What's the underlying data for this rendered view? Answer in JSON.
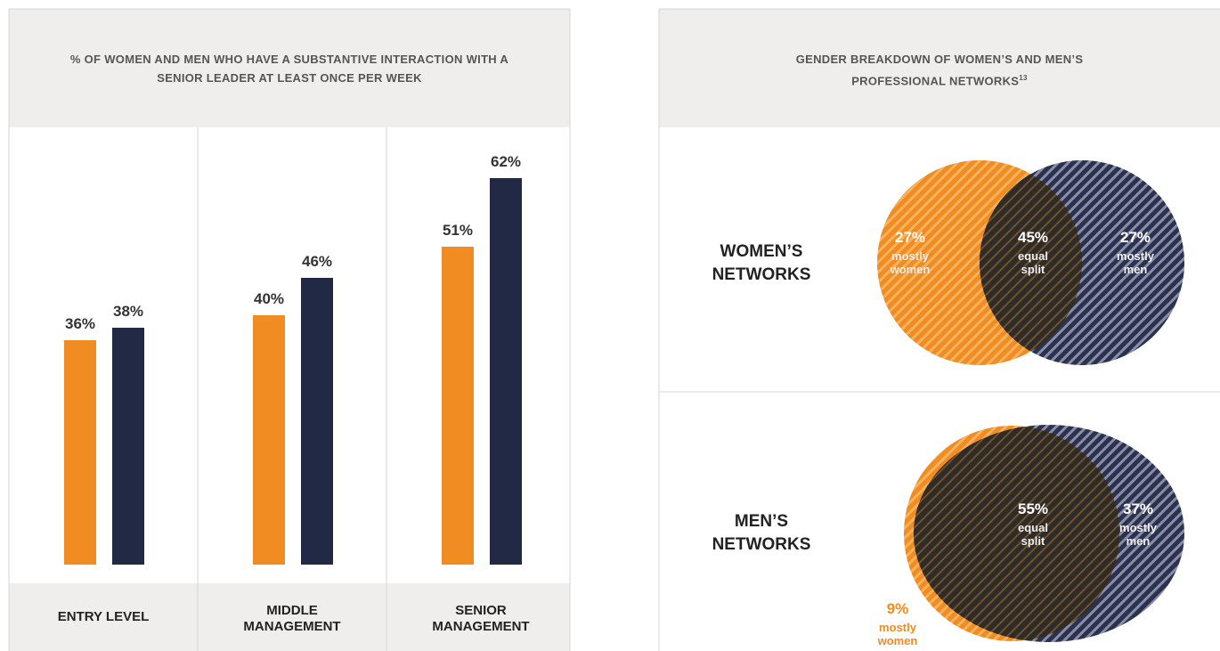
{
  "chart_data": [
    {
      "type": "bar",
      "title": "% OF WOMEN AND MEN WHO HAVE A SUBSTANTIVE INTERACTION WITH A SENIOR LEADER AT LEAST ONCE PER WEEK",
      "categories": [
        "ENTRY LEVEL",
        "MIDDLE MANAGEMENT",
        "SENIOR MANAGEMENT"
      ],
      "series": [
        {
          "color": "#f08c22",
          "values": [
            36,
            40,
            51
          ],
          "value_labels": [
            "36%",
            "40%",
            "51%"
          ]
        },
        {
          "color": "#222944",
          "values": [
            38,
            46,
            62
          ],
          "value_labels": [
            "38%",
            "46%",
            "62%"
          ]
        }
      ]
    },
    {
      "type": "venn",
      "title": "GENDER BREAKDOWN OF WOMEN’S AND MEN’S PROFESSIONAL NETWORKS",
      "title_note": "13",
      "colors": [
        "#f08c22",
        "#222944"
      ],
      "groups": [
        {
          "name": "WOMEN’S NETWORKS",
          "values": [
            27,
            45,
            27
          ],
          "value_labels": [
            "27%",
            "45%",
            "27%"
          ],
          "segment_labels": [
            "mostly women",
            "equal split",
            "mostly men"
          ]
        },
        {
          "name": "MEN’S NETWORKS",
          "values": [
            9,
            55,
            37
          ],
          "value_labels": [
            "9%",
            "55%",
            "37%"
          ],
          "segment_labels": [
            "mostly women",
            "equal split",
            "mostly men"
          ]
        }
      ]
    }
  ]
}
